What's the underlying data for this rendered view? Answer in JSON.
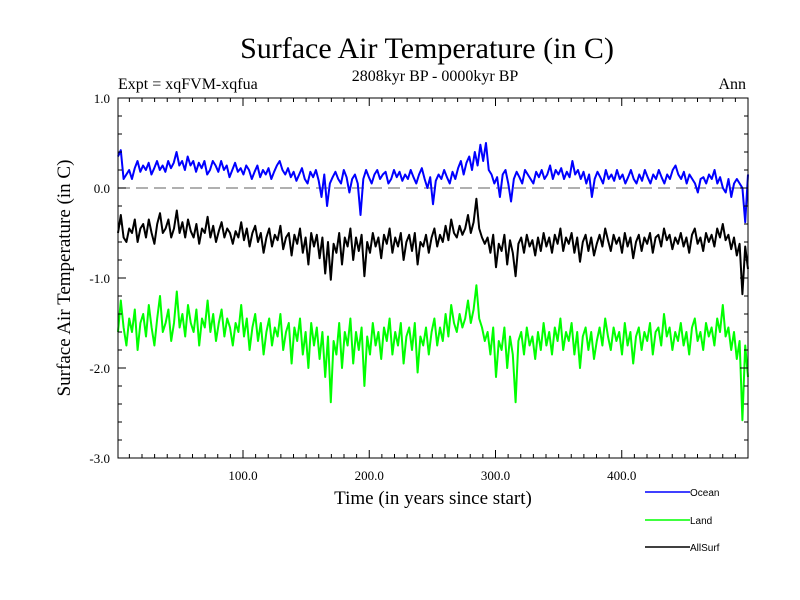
{
  "chart_data": {
    "type": "line",
    "title": "Surface Air Temperature (in C)",
    "subtitle": "2808kyr BP - 0000kyr BP",
    "experiment_label": "Expt = xqFVM-xqfua",
    "season_label": "Ann",
    "xlabel": "Time (in years since start)",
    "ylabel": "Surface Air Temperature (in C)",
    "xlim": [
      1,
      500
    ],
    "ylim": [
      -3.0,
      1.0
    ],
    "x_ticks": [
      100,
      200,
      300,
      400
    ],
    "x_tick_labels": [
      "100.0",
      "200.0",
      "300.0",
      "400.0"
    ],
    "y_ticks": [
      1.0,
      0.0,
      -1.0,
      -2.0,
      -3.0
    ],
    "y_tick_labels": [
      "1.0",
      "0.0",
      "-1.0",
      "-2.0",
      "-3.0"
    ],
    "reference_line": {
      "y": 0.0,
      "style": "dashed",
      "color": "#808080"
    },
    "legend_position": "bottom-right",
    "series": [
      {
        "name": "Ocean",
        "color": "#0000ff",
        "values": [
          0.35,
          0.42,
          0.1,
          0.15,
          0.2,
          0.1,
          0.22,
          0.3,
          0.18,
          0.25,
          0.2,
          0.28,
          0.15,
          0.22,
          0.3,
          0.2,
          0.25,
          0.18,
          0.3,
          0.22,
          0.28,
          0.4,
          0.25,
          0.3,
          0.2,
          0.35,
          0.25,
          0.3,
          0.18,
          0.28,
          0.22,
          0.3,
          0.15,
          0.2,
          0.3,
          0.25,
          0.18,
          0.3,
          0.2,
          0.25,
          0.12,
          0.2,
          0.28,
          0.18,
          0.22,
          0.15,
          0.25,
          0.2,
          0.1,
          0.18,
          0.25,
          0.12,
          0.2,
          0.15,
          0.22,
          0.1,
          0.18,
          0.25,
          0.3,
          0.2,
          0.15,
          0.22,
          0.12,
          0.18,
          0.08,
          0.15,
          0.22,
          0.1,
          0.05,
          0.18,
          0.12,
          0.2,
          0.08,
          -0.1,
          0.15,
          -0.2,
          0.05,
          0.12,
          0.18,
          0.1,
          0.05,
          0.2,
          0.12,
          -0.05,
          0.1,
          0.15,
          0.05,
          -0.3,
          0.1,
          0.2,
          0.12,
          0.05,
          0.15,
          0.2,
          0.1,
          0.15,
          0.18,
          0.05,
          0.1,
          0.2,
          0.12,
          0.18,
          0.08,
          0.15,
          0.1,
          0.2,
          0.12,
          0.05,
          0.15,
          0.22,
          0.1,
          0.0,
          0.12,
          -0.18,
          0.08,
          0.15,
          0.1,
          0.2,
          0.12,
          0.05,
          0.18,
          0.1,
          0.22,
          0.3,
          0.15,
          0.28,
          0.35,
          0.2,
          0.4,
          0.25,
          0.48,
          0.3,
          0.5,
          0.2,
          0.15,
          0.05,
          0.12,
          -0.1,
          0.15,
          0.2,
          0.05,
          -0.15,
          0.1,
          0.18,
          0.12,
          0.05,
          0.2,
          0.15,
          0.1,
          0.05,
          0.18,
          0.12,
          0.2,
          0.1,
          0.15,
          0.25,
          0.1,
          0.2,
          0.15,
          0.22,
          0.1,
          0.18,
          0.12,
          0.3,
          0.15,
          0.2,
          0.1,
          0.18,
          0.05,
          0.15,
          -0.1,
          0.1,
          0.18,
          0.12,
          0.05,
          0.2,
          0.1,
          0.15,
          0.08,
          0.2,
          0.1,
          0.15,
          0.05,
          0.12,
          0.2,
          0.1,
          0.05,
          0.15,
          0.08,
          0.2,
          0.12,
          0.05,
          0.15,
          0.1,
          0.2,
          0.12,
          0.05,
          0.15,
          0.1,
          0.2,
          0.25,
          0.15,
          0.1,
          0.18,
          0.05,
          0.15,
          0.1,
          0.05,
          -0.05,
          0.1,
          0.12,
          0.05,
          0.15,
          0.1,
          0.2,
          0.05,
          0.12,
          0.0,
          -0.05,
          0.1,
          -0.1,
          0.05,
          0.1,
          0.05,
          0.0,
          -0.38,
          0.15
        ]
      },
      {
        "name": "Land",
        "color": "#00ff00",
        "values": [
          -1.6,
          -1.25,
          -1.55,
          -1.75,
          -1.45,
          -1.6,
          -1.35,
          -1.8,
          -1.5,
          -1.4,
          -1.65,
          -1.3,
          -1.55,
          -1.75,
          -1.45,
          -1.2,
          -1.6,
          -1.5,
          -1.35,
          -1.7,
          -1.5,
          -1.15,
          -1.55,
          -1.4,
          -1.65,
          -1.3,
          -1.5,
          -1.6,
          -1.35,
          -1.75,
          -1.45,
          -1.55,
          -1.25,
          -1.6,
          -1.4,
          -1.7,
          -1.5,
          -1.35,
          -1.65,
          -1.45,
          -1.55,
          -1.75,
          -1.5,
          -1.6,
          -1.3,
          -1.65,
          -1.45,
          -1.8,
          -1.55,
          -1.4,
          -1.7,
          -1.5,
          -1.85,
          -1.6,
          -1.45,
          -1.75,
          -1.55,
          -1.65,
          -1.4,
          -1.8,
          -1.6,
          -1.5,
          -1.95,
          -1.55,
          -1.7,
          -1.45,
          -1.85,
          -1.6,
          -2.0,
          -1.5,
          -1.75,
          -1.55,
          -1.9,
          -1.6,
          -2.1,
          -1.65,
          -2.38,
          -1.7,
          -1.85,
          -1.5,
          -2.0,
          -1.6,
          -1.75,
          -1.45,
          -1.95,
          -1.6,
          -1.8,
          -1.55,
          -2.2,
          -1.65,
          -1.85,
          -1.5,
          -1.75,
          -1.6,
          -1.9,
          -1.55,
          -1.7,
          -1.45,
          -1.85,
          -1.6,
          -1.75,
          -1.5,
          -1.95,
          -1.65,
          -1.55,
          -1.8,
          -1.5,
          -2.05,
          -1.65,
          -1.75,
          -1.55,
          -1.85,
          -1.6,
          -1.45,
          -1.75,
          -1.55,
          -1.7,
          -1.4,
          -1.65,
          -1.3,
          -1.5,
          -1.6,
          -1.4,
          -1.55,
          -1.45,
          -1.25,
          -1.5,
          -1.35,
          -1.08,
          -1.45,
          -1.55,
          -1.7,
          -1.6,
          -1.85,
          -1.55,
          -2.1,
          -1.7,
          -1.8,
          -1.55,
          -2.0,
          -1.65,
          -1.85,
          -2.38,
          -1.7,
          -1.6,
          -1.85,
          -1.55,
          -1.75,
          -1.65,
          -1.9,
          -1.6,
          -1.8,
          -1.5,
          -1.75,
          -1.6,
          -1.85,
          -1.55,
          -1.7,
          -1.45,
          -1.8,
          -1.6,
          -1.7,
          -1.5,
          -1.85,
          -1.6,
          -2.0,
          -1.65,
          -1.55,
          -1.8,
          -1.6,
          -1.9,
          -1.7,
          -1.55,
          -1.75,
          -1.45,
          -1.65,
          -1.8,
          -1.55,
          -1.7,
          -1.6,
          -1.85,
          -1.5,
          -1.75,
          -1.6,
          -1.95,
          -1.65,
          -1.55,
          -1.8,
          -1.6,
          -1.7,
          -1.5,
          -1.85,
          -1.6,
          -1.55,
          -1.75,
          -1.4,
          -1.65,
          -1.55,
          -1.8,
          -1.6,
          -1.7,
          -1.5,
          -1.75,
          -1.6,
          -1.85,
          -1.55,
          -1.45,
          -1.7,
          -1.6,
          -1.8,
          -1.5,
          -1.65,
          -1.55,
          -1.75,
          -1.45,
          -1.6,
          -1.3,
          -1.65,
          -1.55,
          -1.8,
          -1.6,
          -1.9,
          -1.7,
          -2.58,
          -1.75,
          -2.1
        ]
      },
      {
        "name": "AllSurf",
        "color": "#000000",
        "values": [
          -0.5,
          -0.3,
          -0.55,
          -0.6,
          -0.45,
          -0.5,
          -0.35,
          -0.6,
          -0.45,
          -0.4,
          -0.55,
          -0.35,
          -0.5,
          -0.62,
          -0.4,
          -0.28,
          -0.5,
          -0.45,
          -0.35,
          -0.55,
          -0.45,
          -0.25,
          -0.5,
          -0.38,
          -0.55,
          -0.35,
          -0.48,
          -0.55,
          -0.4,
          -0.62,
          -0.45,
          -0.5,
          -0.32,
          -0.55,
          -0.42,
          -0.6,
          -0.48,
          -0.38,
          -0.55,
          -0.45,
          -0.5,
          -0.62,
          -0.48,
          -0.55,
          -0.38,
          -0.58,
          -0.45,
          -0.65,
          -0.5,
          -0.42,
          -0.6,
          -0.5,
          -0.72,
          -0.55,
          -0.45,
          -0.65,
          -0.52,
          -0.58,
          -0.42,
          -0.68,
          -0.55,
          -0.5,
          -0.75,
          -0.52,
          -0.62,
          -0.45,
          -0.72,
          -0.55,
          -0.85,
          -0.5,
          -0.65,
          -0.52,
          -0.78,
          -0.55,
          -0.95,
          -0.6,
          -1.02,
          -0.62,
          -0.72,
          -0.5,
          -0.85,
          -0.55,
          -0.65,
          -0.45,
          -0.8,
          -0.55,
          -0.7,
          -0.52,
          -0.98,
          -0.6,
          -0.72,
          -0.5,
          -0.65,
          -0.55,
          -0.78,
          -0.52,
          -0.62,
          -0.45,
          -0.72,
          -0.55,
          -0.65,
          -0.5,
          -0.8,
          -0.6,
          -0.52,
          -0.7,
          -0.5,
          -0.85,
          -0.6,
          -0.65,
          -0.52,
          -0.72,
          -0.55,
          -0.45,
          -0.65,
          -0.52,
          -0.6,
          -0.42,
          -0.58,
          -0.35,
          -0.5,
          -0.55,
          -0.42,
          -0.52,
          -0.45,
          -0.3,
          -0.5,
          -0.38,
          -0.12,
          -0.45,
          -0.55,
          -0.62,
          -0.55,
          -0.72,
          -0.52,
          -0.88,
          -0.62,
          -0.7,
          -0.52,
          -0.85,
          -0.58,
          -0.72,
          -0.98,
          -0.62,
          -0.55,
          -0.72,
          -0.52,
          -0.65,
          -0.58,
          -0.75,
          -0.55,
          -0.7,
          -0.5,
          -0.65,
          -0.55,
          -0.72,
          -0.52,
          -0.62,
          -0.45,
          -0.7,
          -0.55,
          -0.62,
          -0.5,
          -0.72,
          -0.55,
          -0.82,
          -0.6,
          -0.52,
          -0.7,
          -0.55,
          -0.75,
          -0.62,
          -0.52,
          -0.65,
          -0.45,
          -0.58,
          -0.7,
          -0.52,
          -0.62,
          -0.55,
          -0.72,
          -0.5,
          -0.65,
          -0.55,
          -0.78,
          -0.6,
          -0.52,
          -0.7,
          -0.55,
          -0.62,
          -0.5,
          -0.72,
          -0.55,
          -0.52,
          -0.65,
          -0.45,
          -0.58,
          -0.52,
          -0.68,
          -0.55,
          -0.62,
          -0.5,
          -0.65,
          -0.55,
          -0.72,
          -0.52,
          -0.45,
          -0.62,
          -0.55,
          -0.7,
          -0.5,
          -0.6,
          -0.52,
          -0.65,
          -0.45,
          -0.55,
          -0.4,
          -0.58,
          -0.52,
          -0.68,
          -0.55,
          -0.75,
          -0.62,
          -1.18,
          -0.65,
          -0.9
        ]
      }
    ]
  }
}
